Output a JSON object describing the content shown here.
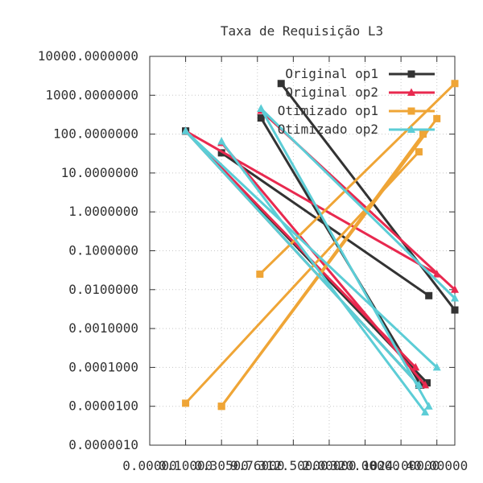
{
  "chart_data": {
    "type": "line",
    "title": "Taxa de Requisição L3",
    "yscale": "log",
    "ylim": [
      1e-06,
      10000
    ],
    "xscale": "log2",
    "xlim": [
      0.03125,
      4096
    ],
    "yticks": [
      {
        "value": 1e-06,
        "label": "0.0000010"
      },
      {
        "value": 1e-05,
        "label": "0.0000100"
      },
      {
        "value": 0.0001,
        "label": "0.0001000"
      },
      {
        "value": 0.001,
        "label": "0.0010000"
      },
      {
        "value": 0.01,
        "label": "0.0100000"
      },
      {
        "value": 0.1,
        "label": "0.1000000"
      },
      {
        "value": 1,
        "label": "1.0000000"
      },
      {
        "value": 10,
        "label": "10.0000000"
      },
      {
        "value": 100,
        "label": "100.0000000"
      },
      {
        "value": 1000,
        "label": "1000.0000000"
      },
      {
        "value": 10000,
        "label": "10000.0000000"
      }
    ],
    "xticks": [
      {
        "value": 0.03125,
        "label": "0.00000"
      },
      {
        "value": 0.125,
        "label": "0.10000"
      },
      {
        "value": 0.5,
        "label": "0.30500"
      },
      {
        "value": 2,
        "label": "9.76000"
      },
      {
        "value": 8,
        "label": "312.50000"
      },
      {
        "value": 32,
        "label": "2.00000"
      },
      {
        "value": 128,
        "label": "320.00000"
      },
      {
        "value": 512,
        "label": "1024.00000"
      },
      {
        "value": 2048,
        "label": "40.00000"
      }
    ],
    "grid": true,
    "legend_position": "top-right",
    "series": [
      {
        "name": "Original op1",
        "color": "#333333",
        "marker": "square",
        "segments": [
          [
            [
              0.125,
              120
            ],
            [
              0.0625,
              0
            ],
            [
              1024,
              3.5e-05
            ]
          ],
          [
            [
              0.5,
              33
            ],
            [
              1500,
              0.007
            ]
          ],
          [
            [
              2.3,
              260
            ],
            [
              1100,
              3.5e-05
            ]
          ],
          [
            [
              5,
              2000
            ],
            [
              4096,
              0.003
            ]
          ],
          [
            [
              0.125,
              120
            ],
            [
              1400,
              4e-05
            ]
          ]
        ]
      },
      {
        "name": "Original op2",
        "color": "#e8294f",
        "marker": "triangle",
        "segments": [
          [
            [
              0.125,
              120
            ],
            [
              900,
              0.0001
            ]
          ],
          [
            [
              0.5,
              60
            ],
            [
              1300,
              3.5e-05
            ]
          ],
          [
            [
              2.3,
              400
            ],
            [
              4096,
              0.01
            ]
          ],
          [
            [
              0.125,
              120
            ],
            [
              2048,
              0.025
            ]
          ]
        ]
      },
      {
        "name": "Otimizado op1",
        "color": "#efa536",
        "marker": "square",
        "segments": [
          [
            [
              0.125,
              1.2e-05
            ],
            [
              1024,
              35
            ]
          ],
          [
            [
              0.5,
              1e-05
            ],
            [
              2048,
              250
            ]
          ],
          [
            [
              2.2,
              0.025
            ],
            [
              4096,
              2000
            ]
          ],
          [
            [
              0.5,
              1e-05
            ],
            [
              1200,
              100
            ]
          ]
        ]
      },
      {
        "name": "Otimizado op2",
        "color": "#5ccdd6",
        "marker": "triangle",
        "segments": [
          [
            [
              0.125,
              120
            ],
            [
              1024,
              3.5e-05
            ]
          ],
          [
            [
              0.5,
              65
            ],
            [
              1300,
              7e-06
            ]
          ],
          [
            [
              2.3,
              450
            ],
            [
              4096,
              0.006
            ]
          ],
          [
            [
              0.125,
              120
            ],
            [
              2048,
              0.0001
            ]
          ],
          [
            [
              2.3,
              450
            ],
            [
              1500,
              1e-05
            ]
          ]
        ]
      }
    ]
  }
}
